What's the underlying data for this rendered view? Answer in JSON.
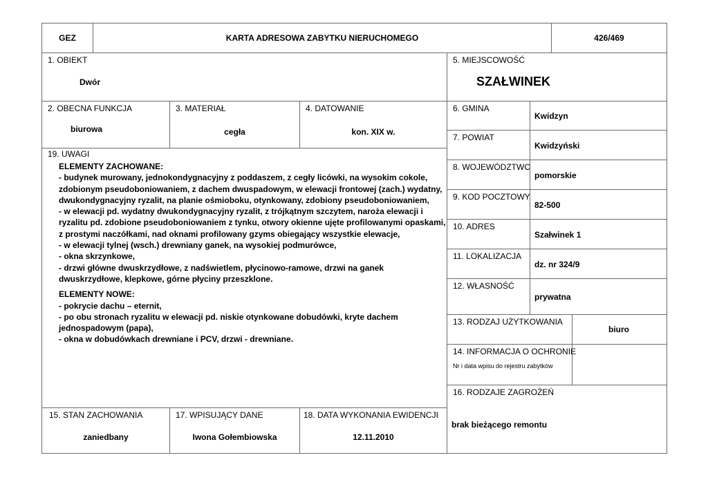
{
  "header": {
    "code": "GEZ",
    "title": "KARTA ADRESOWA ZABYTKU NIERUCHOMEGO",
    "number": "426/469"
  },
  "obiekt": {
    "label": "1. OBIEKT",
    "value": "Dwór"
  },
  "miejscowosc": {
    "label": "5. MIEJSCOWOŚĆ",
    "value": "SZAŁWINEK"
  },
  "funkcja": {
    "label": "2. OBECNA FUNKCJA",
    "value": "biurowa"
  },
  "material": {
    "label": "3. MATERIAŁ",
    "value": "cegła"
  },
  "datowanie": {
    "label": "4. DATOWANIE",
    "value": "kon. XIX w."
  },
  "right_rows": [
    {
      "label": "6. GMINA",
      "value": "Kwidzyn"
    },
    {
      "label": "7. POWIAT",
      "value": "Kwidzyński"
    },
    {
      "label": "8. WOJEWÓDZTWO",
      "value": "pomorskie"
    },
    {
      "label": "9. KOD POCZTOWY",
      "value": "82-500"
    },
    {
      "label": "10. ADRES",
      "value": "Szałwinek 1"
    },
    {
      "label": "11. LOKALIZACJA",
      "value": "dz. nr 324/9"
    },
    {
      "label": "12. WŁASNOŚĆ",
      "value": "prywatna"
    }
  ],
  "uzytkowanie": {
    "label": "13. RODZAJ UŻYTKOWANIA",
    "value": "biuro"
  },
  "ochrona": {
    "label": "14. INFORMACJA O OCHRONIE",
    "sublabel": "Nr i data wpisu do rejestru zabytków",
    "value": ""
  },
  "zagrozenia": {
    "label": "16. RODZAJE ZAGROŻEŃ",
    "value": "brak bieżącego remontu"
  },
  "uwagi": {
    "label": "19. UWAGI",
    "preserved_heading": "ELEMENTY ZACHOWANE:",
    "preserved_lines": [
      "- budynek murowany, jednokondygnacyjny z poddaszem, z cegły licówki, na wysokim cokole,",
      "zdobionym pseudoboniowaniem, z dachem dwuspadowym, w elewacji frontowej (zach.) wydatny,",
      "dwukondygnacyjny ryzalit, na planie ośmioboku, otynkowany, zdobiony pseudoboniowaniem,",
      "- w elewacji pd. wydatny dwukondygnacyjny ryzalit, z trójkątnym szczytem, naroża elewacji i",
      "ryzalitu pd. zdobione pseudoboniowaniem z tynku, otwory okienne ujęte profilowanymi opaskami,",
      "z prostymi naczółkami, nad oknami profilowany gzyms obiegający wszystkie elewacje,",
      "- w elewacji tylnej (wsch.) drewniany ganek, na wysokiej podmurówce,",
      "- okna skrzynkowe,",
      "- drzwi główne dwuskrzydłowe, z nadświetlem, płycinowo-ramowe, drzwi na ganek",
      "dwuskrzydłowe, klepkowe, górne płyciny przeszklone."
    ],
    "new_heading": "ELEMENTY NOWE:",
    "new_lines": [
      "- pokrycie dachu – eternit,",
      "- po obu stronach ryzalitu w elewacji pd. niskie otynkowane dobudówki, kryte dachem",
      "jednospadowym (papa),",
      "- okna w dobudówkach drewniane i PCV, drzwi - drewniane."
    ]
  },
  "stan": {
    "label": "15. STAN ZACHOWANIA",
    "value": "zaniedbany"
  },
  "wpisujacy": {
    "label": "17.  WPISUJĄCY DANE",
    "value": "Iwona Gołembiowska"
  },
  "data_ewidencji": {
    "label": "18. DATA WYKONANIA EWIDENCJI",
    "value": "12.11.2010"
  }
}
